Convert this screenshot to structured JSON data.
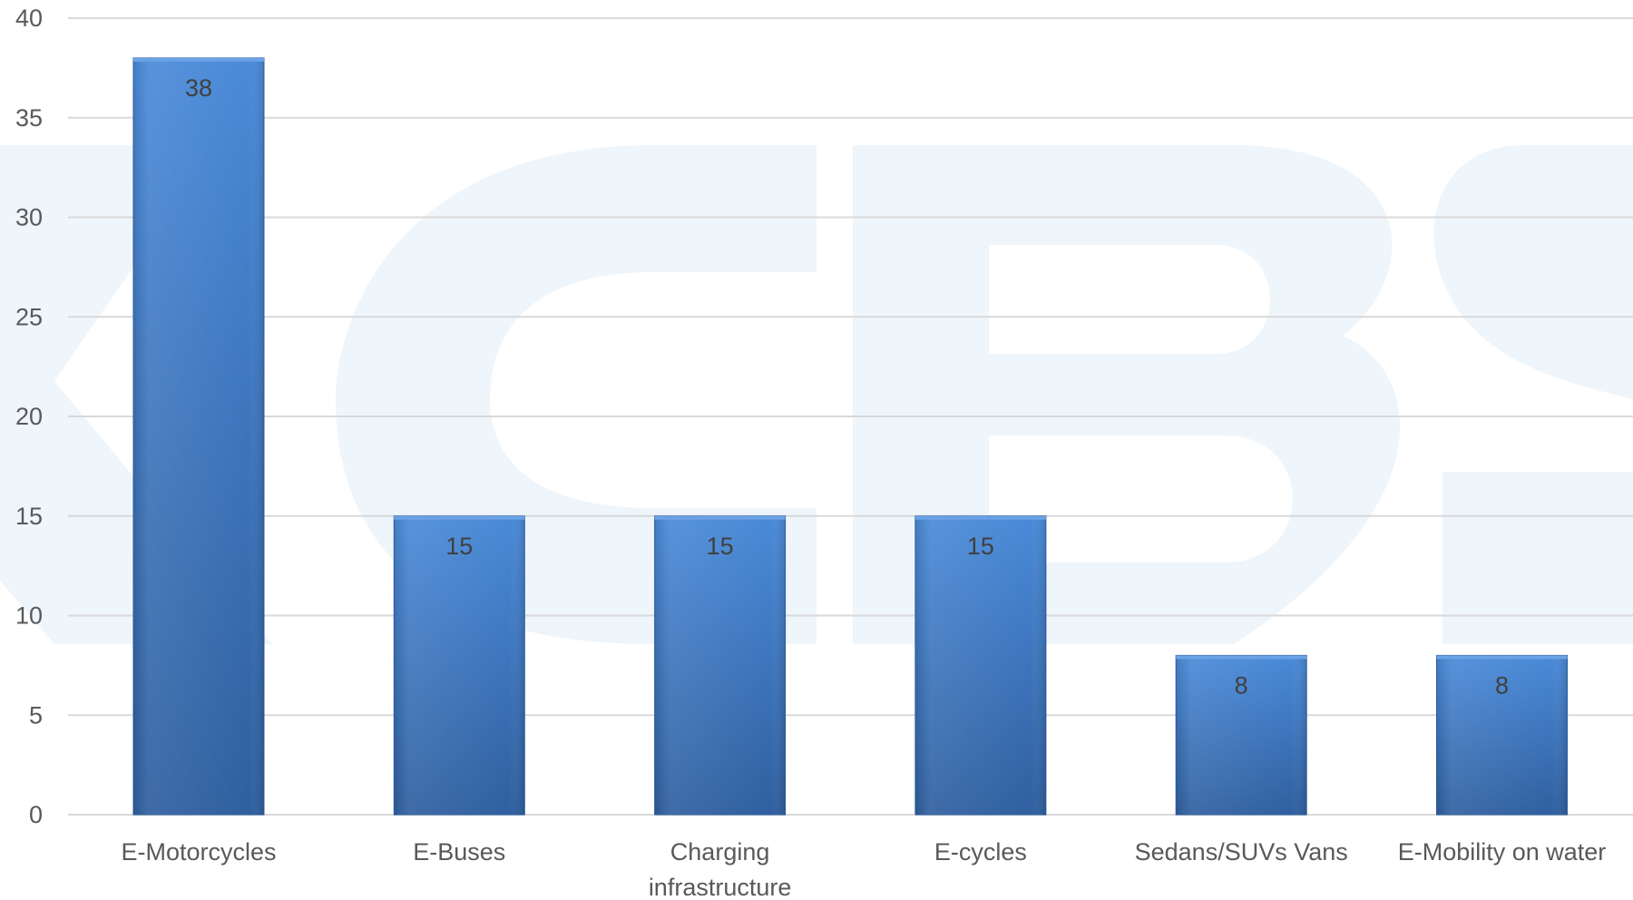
{
  "chart_data": {
    "type": "bar",
    "title": "",
    "xlabel": "",
    "ylabel": "",
    "categories": [
      "E-Motorcycles",
      "E-Buses",
      "Charging infrastructure",
      "E-cycles",
      "Sedans/SUVs Vans",
      "E-Mobility on water"
    ],
    "category_lines": [
      [
        "E-Motorcycles"
      ],
      [
        "E-Buses"
      ],
      [
        "Charging",
        "infrastructure"
      ],
      [
        "E-cycles"
      ],
      [
        "Sedans/SUVs Vans"
      ],
      [
        "E-Mobility on water"
      ]
    ],
    "values": [
      38,
      15,
      15,
      15,
      8,
      8
    ],
    "data_labels": [
      "38",
      "15",
      "15",
      "15",
      "8",
      "8"
    ],
    "ylim": [
      0,
      40
    ],
    "yticks": [
      0,
      5,
      10,
      15,
      20,
      25,
      30,
      35,
      40
    ],
    "ytick_labels": [
      "0",
      "5",
      "10",
      "15",
      "20",
      "25",
      "30",
      "35",
      "40"
    ],
    "grid": true,
    "legend": "none",
    "bar_color": "#3a76c4",
    "bar_color_light": "#4a8ad8",
    "bar_color_dark": "#2f5f9f",
    "grid_color": "#d9d9d9",
    "watermark_color": "#eef5fb"
  }
}
